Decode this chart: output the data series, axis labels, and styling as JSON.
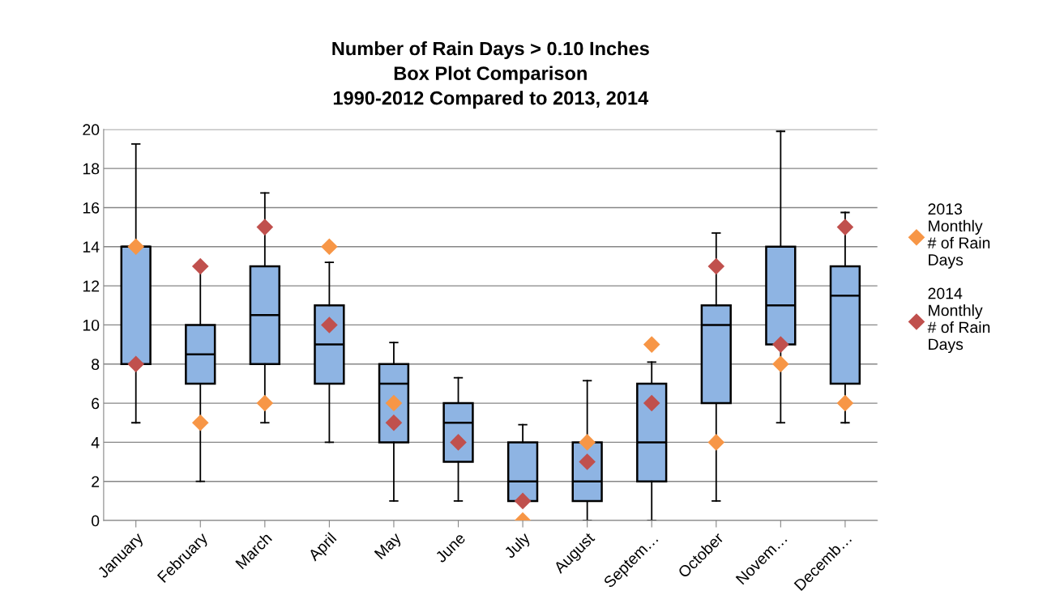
{
  "chart_data": {
    "type": "box",
    "title": "Number of Rain Days > 0.10 Inches\nBox Plot Comparison\n1990-2012 Compared to 2013, 2014",
    "categories": [
      "January",
      "February",
      "March",
      "April",
      "May",
      "June",
      "July",
      "August",
      "Septem…",
      "October",
      "Novem…",
      "Decemb…"
    ],
    "color": "#8eb4e3",
    "boxes": [
      {
        "low": 5,
        "q1": 8,
        "median": 14,
        "q3": 14,
        "high": 19.25
      },
      {
        "low": 2,
        "q1": 7,
        "median": 8.5,
        "q3": 10,
        "high": 13
      },
      {
        "low": 5,
        "q1": 8,
        "median": 10.5,
        "q3": 13,
        "high": 16.75
      },
      {
        "low": 4,
        "q1": 7,
        "median": 9,
        "q3": 11,
        "high": 13.2
      },
      {
        "low": 1,
        "q1": 4,
        "median": 7,
        "q3": 8,
        "high": 9.1
      },
      {
        "low": 1,
        "q1": 3,
        "median": 5,
        "q3": 6,
        "high": 7.3
      },
      {
        "low": 1,
        "q1": 1,
        "median": 2,
        "q3": 4,
        "high": 4.9
      },
      {
        "low": 0,
        "q1": 1,
        "median": 2,
        "q3": 4,
        "high": 7.15
      },
      {
        "low": 0,
        "q1": 2,
        "median": 4,
        "q3": 7,
        "high": 8.1
      },
      {
        "low": 1,
        "q1": 6,
        "median": 10,
        "q3": 11,
        "high": 14.7
      },
      {
        "low": 5,
        "q1": 9,
        "median": 11,
        "q3": 14,
        "high": 19.9
      },
      {
        "low": 5,
        "q1": 7,
        "median": 11.5,
        "q3": 13,
        "high": 15.75
      }
    ],
    "series": [
      {
        "type": "scatter",
        "name": "2013\nMonthly\n# of Rain\nDays",
        "color": "#f79646",
        "values": [
          14,
          5,
          6,
          14,
          6,
          null,
          0,
          4,
          9,
          4,
          8,
          6
        ]
      },
      {
        "type": "scatter",
        "name": "2014\nMonthly\n# of Rain\nDays",
        "color": "#c0504d",
        "values": [
          8,
          13,
          15,
          10,
          5,
          4,
          1,
          3,
          6,
          13,
          9,
          15
        ]
      }
    ],
    "marker": "diamond",
    "ylim": [
      0,
      20
    ],
    "yticks": [
      0,
      2,
      4,
      6,
      8,
      10,
      12,
      14,
      16,
      18,
      20
    ],
    "grid": "y",
    "legend": "right"
  }
}
